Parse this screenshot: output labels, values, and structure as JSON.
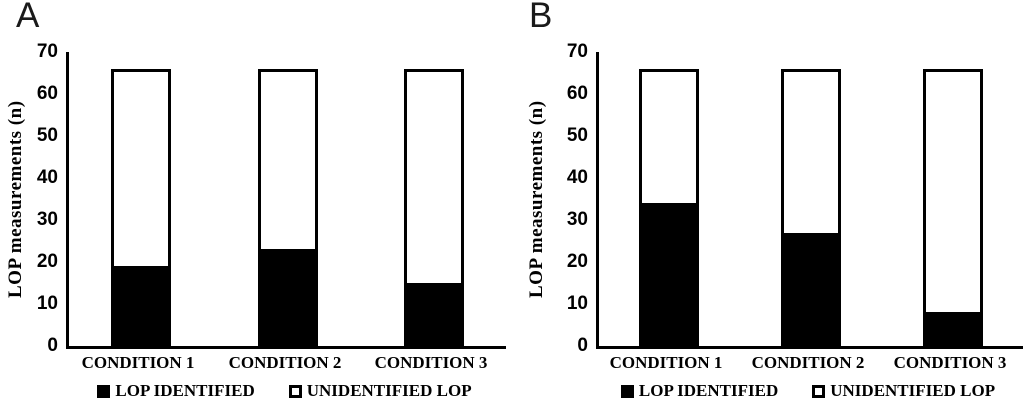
{
  "figure": {
    "background": "#ffffff",
    "foreground": "#000000"
  },
  "chart_data": [
    {
      "type": "bar",
      "stacked": true,
      "panel_label": "A",
      "title": "",
      "xlabel": "",
      "ylabel": "LOP measurements (n)",
      "ylim": [
        0,
        70
      ],
      "yticks": [
        0,
        10,
        20,
        30,
        40,
        50,
        60,
        70
      ],
      "categories": [
        "CONDITION 1",
        "CONDITION 2",
        "CONDITION 3"
      ],
      "series": [
        {
          "name": "LOP IDENTIFIED",
          "swatch": "filled-black-square",
          "color": "#000000",
          "values": [
            19,
            23,
            15
          ]
        },
        {
          "name": "UNIDENTIFIED LOP",
          "swatch": "outlined-white-square",
          "color": "#ffffff",
          "values": [
            47,
            43,
            51
          ]
        }
      ],
      "stack_totals": [
        66,
        66,
        66
      ],
      "grid": false,
      "legend_position": "bottom"
    },
    {
      "type": "bar",
      "stacked": true,
      "panel_label": "B",
      "title": "",
      "xlabel": "",
      "ylabel": "LOP measurements (n)",
      "ylim": [
        0,
        70
      ],
      "yticks": [
        0,
        10,
        20,
        30,
        40,
        50,
        60,
        70
      ],
      "categories": [
        "CONDITION 1",
        "CONDITION 2",
        "CONDITION 3"
      ],
      "series": [
        {
          "name": "LOP IDENTIFIED",
          "swatch": "filled-black-square",
          "color": "#000000",
          "values": [
            34,
            27,
            8
          ]
        },
        {
          "name": "UNIDENTIFIED LOP",
          "swatch": "outlined-white-square",
          "color": "#ffffff",
          "values": [
            32,
            39,
            58
          ]
        }
      ],
      "stack_totals": [
        66,
        66,
        66
      ],
      "grid": false,
      "legend_position": "bottom"
    }
  ]
}
